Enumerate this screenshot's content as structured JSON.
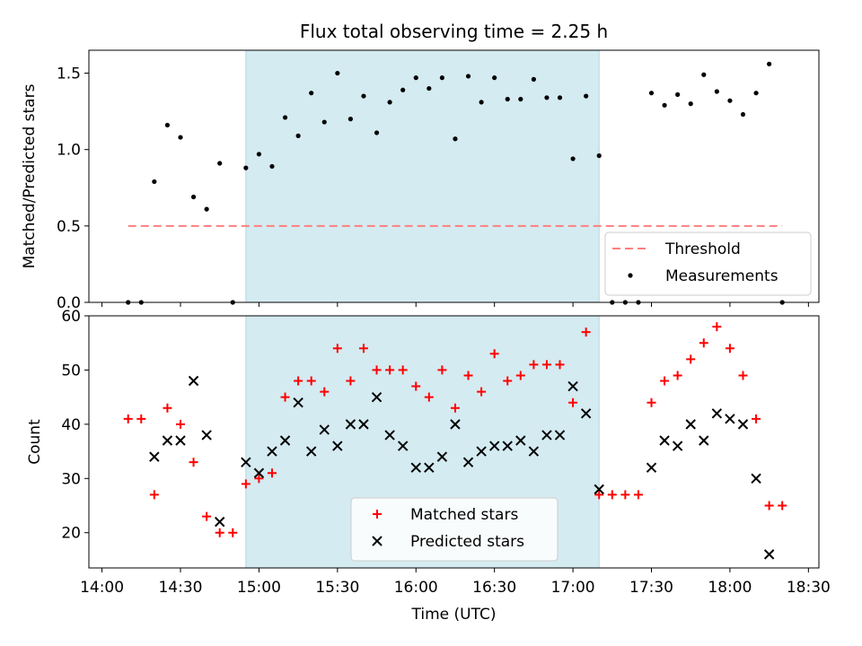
{
  "chart_data": [
    {
      "type": "scatter",
      "title": "Flux total observing time = 2.25 h",
      "ylabel": "Matched/Predicted stars",
      "xlabel": "",
      "ylim": [
        0,
        1.65
      ],
      "xlim": [
        "13:55",
        "18:34"
      ],
      "y_ticks": [
        "0.0",
        "0.5",
        "1.0",
        "1.5"
      ],
      "y_tick_values": [
        0,
        0.5,
        1.0,
        1.5
      ],
      "grid": false,
      "legend_position": "bottom-right",
      "shaded_interval": {
        "start": "14:55",
        "end": "17:10",
        "color": "#d4ebf1"
      },
      "series": [
        {
          "name": "Threshold",
          "style": "dashed-line",
          "color": "#ff7f7f",
          "x": [
            "14:10",
            "18:20"
          ],
          "y": [
            0.5,
            0.5
          ]
        },
        {
          "name": "Measurements",
          "style": "dot",
          "color": "#000000",
          "x": [
            "14:10",
            "14:15",
            "14:20",
            "14:25",
            "14:30",
            "14:35",
            "14:40",
            "14:45",
            "14:50",
            "14:55",
            "15:00",
            "15:05",
            "15:10",
            "15:15",
            "15:20",
            "15:25",
            "15:30",
            "15:35",
            "15:40",
            "15:45",
            "15:50",
            "15:55",
            "16:00",
            "16:05",
            "16:10",
            "16:15",
            "16:20",
            "16:25",
            "16:30",
            "16:35",
            "16:40",
            "16:45",
            "16:50",
            "16:55",
            "17:00",
            "17:05",
            "17:10",
            "17:15",
            "17:20",
            "17:25",
            "17:30",
            "17:35",
            "17:40",
            "17:45",
            "17:50",
            "17:55",
            "18:00",
            "18:05",
            "18:10",
            "18:15",
            "18:20"
          ],
          "y": [
            0.0,
            0.0,
            0.79,
            1.16,
            1.08,
            0.69,
            0.61,
            0.91,
            0.0,
            0.88,
            0.97,
            0.89,
            1.21,
            1.09,
            1.37,
            1.18,
            1.5,
            1.2,
            1.35,
            1.11,
            1.31,
            1.39,
            1.47,
            1.4,
            1.47,
            1.07,
            1.48,
            1.31,
            1.47,
            1.33,
            1.33,
            1.46,
            1.34,
            1.34,
            0.94,
            1.35,
            0.96,
            0.0,
            0.0,
            0.0,
            1.37,
            1.29,
            1.36,
            1.3,
            1.49,
            1.38,
            1.32,
            1.23,
            1.37,
            1.56,
            0.0
          ]
        }
      ]
    },
    {
      "type": "scatter",
      "title": "",
      "ylabel": "Count",
      "xlabel": "Time (UTC)",
      "ylim": [
        13.5,
        60
      ],
      "xlim": [
        "13:55",
        "18:34"
      ],
      "x_ticks": [
        "14:00",
        "14:30",
        "15:00",
        "15:30",
        "16:00",
        "16:30",
        "17:00",
        "17:30",
        "18:00",
        "18:30"
      ],
      "y_ticks": [
        "20",
        "30",
        "40",
        "50",
        "60"
      ],
      "y_tick_values": [
        20,
        30,
        40,
        50,
        60
      ],
      "grid": false,
      "legend_position": "bottom-center",
      "shaded_interval": {
        "start": "14:55",
        "end": "17:10",
        "color": "#d4ebf1"
      },
      "series": [
        {
          "name": "Matched stars",
          "style": "plus",
          "color": "#ff0000",
          "x": [
            "14:10",
            "14:15",
            "14:20",
            "14:25",
            "14:30",
            "14:35",
            "14:40",
            "14:45",
            "14:50",
            "14:55",
            "15:00",
            "15:05",
            "15:10",
            "15:15",
            "15:20",
            "15:25",
            "15:30",
            "15:35",
            "15:40",
            "15:45",
            "15:50",
            "15:55",
            "16:00",
            "16:05",
            "16:10",
            "16:15",
            "16:20",
            "16:25",
            "16:30",
            "16:35",
            "16:40",
            "16:45",
            "16:50",
            "16:55",
            "17:00",
            "17:05",
            "17:10",
            "17:15",
            "17:20",
            "17:25",
            "17:30",
            "17:35",
            "17:40",
            "17:45",
            "17:50",
            "17:55",
            "18:00",
            "18:05",
            "18:10",
            "18:15",
            "18:20"
          ],
          "y": [
            41,
            41,
            27,
            43,
            40,
            33,
            23,
            20,
            20,
            29,
            30,
            31,
            45,
            48,
            48,
            46,
            54,
            48,
            54,
            50,
            50,
            50,
            47,
            45,
            50,
            43,
            49,
            46,
            53,
            48,
            49,
            51,
            51,
            51,
            44,
            57,
            27,
            27,
            27,
            27,
            44,
            48,
            49,
            52,
            55,
            58,
            54,
            49,
            41,
            25,
            25
          ]
        },
        {
          "name": "Predicted stars",
          "style": "x",
          "color": "#000000",
          "x": [
            "14:20",
            "14:25",
            "14:30",
            "14:35",
            "14:40",
            "14:45",
            "14:55",
            "15:00",
            "15:05",
            "15:10",
            "15:15",
            "15:20",
            "15:25",
            "15:30",
            "15:35",
            "15:40",
            "15:45",
            "15:50",
            "15:55",
            "16:00",
            "16:05",
            "16:10",
            "16:15",
            "16:20",
            "16:25",
            "16:30",
            "16:35",
            "16:40",
            "16:45",
            "16:50",
            "16:55",
            "17:00",
            "17:05",
            "17:10",
            "17:30",
            "17:35",
            "17:40",
            "17:45",
            "17:50",
            "17:55",
            "18:00",
            "18:05",
            "18:10",
            "18:15"
          ],
          "y": [
            34,
            37,
            37,
            48,
            38,
            22,
            33,
            31,
            35,
            37,
            44,
            35,
            39,
            36,
            40,
            40,
            45,
            38,
            36,
            32,
            32,
            34,
            40,
            33,
            35,
            36,
            36,
            37,
            35,
            38,
            38,
            47,
            42,
            28,
            32,
            37,
            36,
            40,
            37,
            42,
            41,
            40,
            30,
            16
          ]
        }
      ]
    }
  ]
}
